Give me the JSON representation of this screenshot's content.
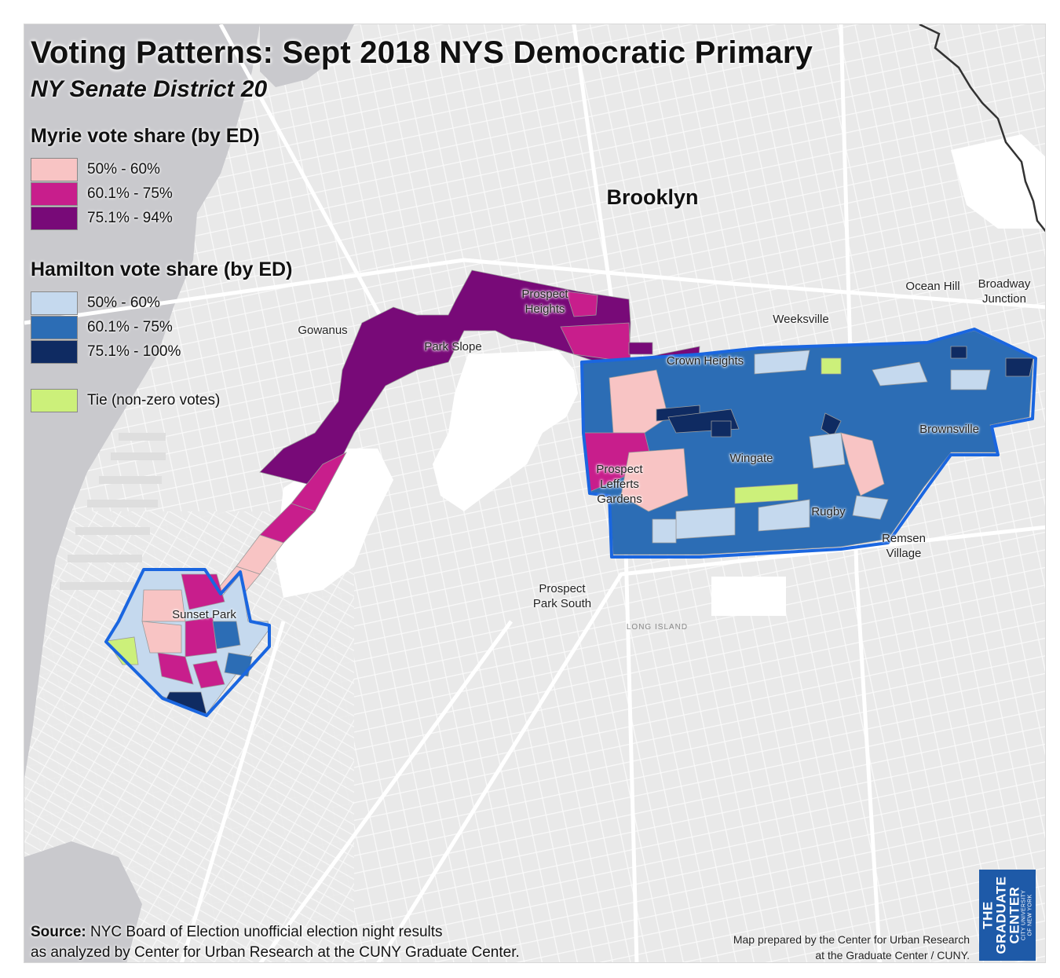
{
  "title": "Voting Patterns: Sept 2018 NYS Democratic Primary",
  "subtitle": "NY Senate District 20",
  "legend_myrie": {
    "heading": "Myrie vote share (by ED)",
    "items": [
      {
        "label": "50% - 60%",
        "color": "#f8c4c4"
      },
      {
        "label": "60.1% - 75%",
        "color": "#c81e8c"
      },
      {
        "label": "75.1% - 94%",
        "color": "#780a78"
      }
    ]
  },
  "legend_hamilton": {
    "heading": "Hamilton vote share (by ED)",
    "items": [
      {
        "label": "50% - 60%",
        "color": "#c5d9ee"
      },
      {
        "label": "60.1% - 75%",
        "color": "#2c6db5"
      },
      {
        "label": "75.1% - 100%",
        "color": "#0f2b62"
      }
    ]
  },
  "legend_tie": {
    "label": "Tie (non-zero votes)",
    "color": "#ccf07a"
  },
  "colors": {
    "district_outline": "#1a66e0",
    "water": "#c8c8cc",
    "land": "#ececec",
    "park": "#ffffff",
    "street": "#fafafa"
  },
  "places": {
    "brooklyn": "Brooklyn",
    "prospect_heights": [
      "Prospect",
      "Heights"
    ],
    "gowanus": "Gowanus",
    "park_slope": "Park Slope",
    "crown_heights": "Crown Heights",
    "weeksville": "Weeksville",
    "ocean_hill": "Ocean Hill",
    "broadway_junction": [
      "Broadway",
      "Junction"
    ],
    "brownsville": "Brownsville",
    "wingate": "Wingate",
    "prospect_lefferts": [
      "Prospect",
      "Lefferts",
      "Gardens"
    ],
    "rugby": "Rugby",
    "remsen_village": [
      "Remsen",
      "Village"
    ],
    "prospect_park_south": [
      "Prospect",
      "Park South"
    ],
    "sunset_park": "Sunset Park",
    "long_island": "LONG ISLAND"
  },
  "source": {
    "bold": "Source:",
    "line1": "NYC Board of Election unofficial election night results",
    "line2": "as analyzed by Center for Urban Research at the CUNY Graduate Center."
  },
  "credit": {
    "line1": "Map prepared by the Center for Urban Research",
    "line2": "at the Graduate Center / CUNY."
  },
  "logo": {
    "line1": "THE",
    "line2": "GRADUATE",
    "line3": "CENTER",
    "line4": "CITY UNIVERSITY",
    "line5": "OF NEW YORK"
  }
}
